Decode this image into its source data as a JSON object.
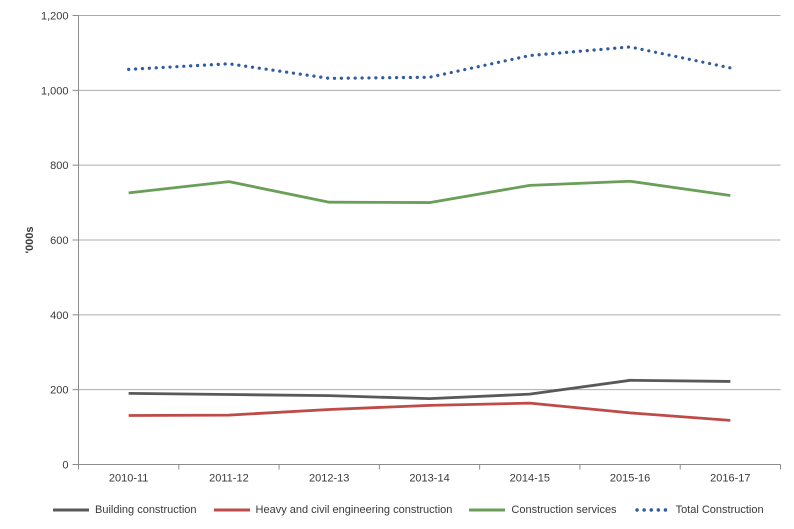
{
  "chart_data": {
    "type": "line",
    "title": "",
    "xlabel": "",
    "ylabel": "'000s",
    "categories": [
      "2010-11",
      "2011-12",
      "2012-13",
      "2013-14",
      "2014-15",
      "2015-16",
      "2016-17"
    ],
    "y_axis": {
      "min": 0,
      "max": 1200,
      "tick_interval": 200,
      "tick_values": [
        0,
        200,
        400,
        600,
        800,
        1000,
        1200
      ],
      "tick_labels": [
        "0",
        "200",
        "400",
        "600",
        "800",
        "1,000",
        "1,200"
      ]
    },
    "grid": "horizontal-only",
    "legend_position": "bottom",
    "series": [
      {
        "name": "Building construction",
        "color": "#595959",
        "line_style": "solid",
        "values": [
          190,
          187,
          184,
          176,
          188,
          225,
          222
        ]
      },
      {
        "name": "Heavy and civil engineering construction",
        "color": "#BE4B48",
        "line_style": "solid",
        "values": [
          131,
          132,
          147,
          158,
          164,
          138,
          118
        ]
      },
      {
        "name": "Construction services",
        "color": "#699F58",
        "line_style": "solid",
        "values": [
          726,
          756,
          701,
          700,
          746,
          757,
          719
        ]
      },
      {
        "name": "Total Construction",
        "color": "#2E5C9E",
        "line_style": "dotted",
        "values": [
          1056,
          1071,
          1032,
          1035,
          1093,
          1116,
          1060
        ]
      }
    ]
  },
  "style_colors": {
    "axis": "#8C8C8C",
    "gridline": "#ABABAB",
    "text": "#3A3A3A",
    "background": "#FFFFFF"
  }
}
